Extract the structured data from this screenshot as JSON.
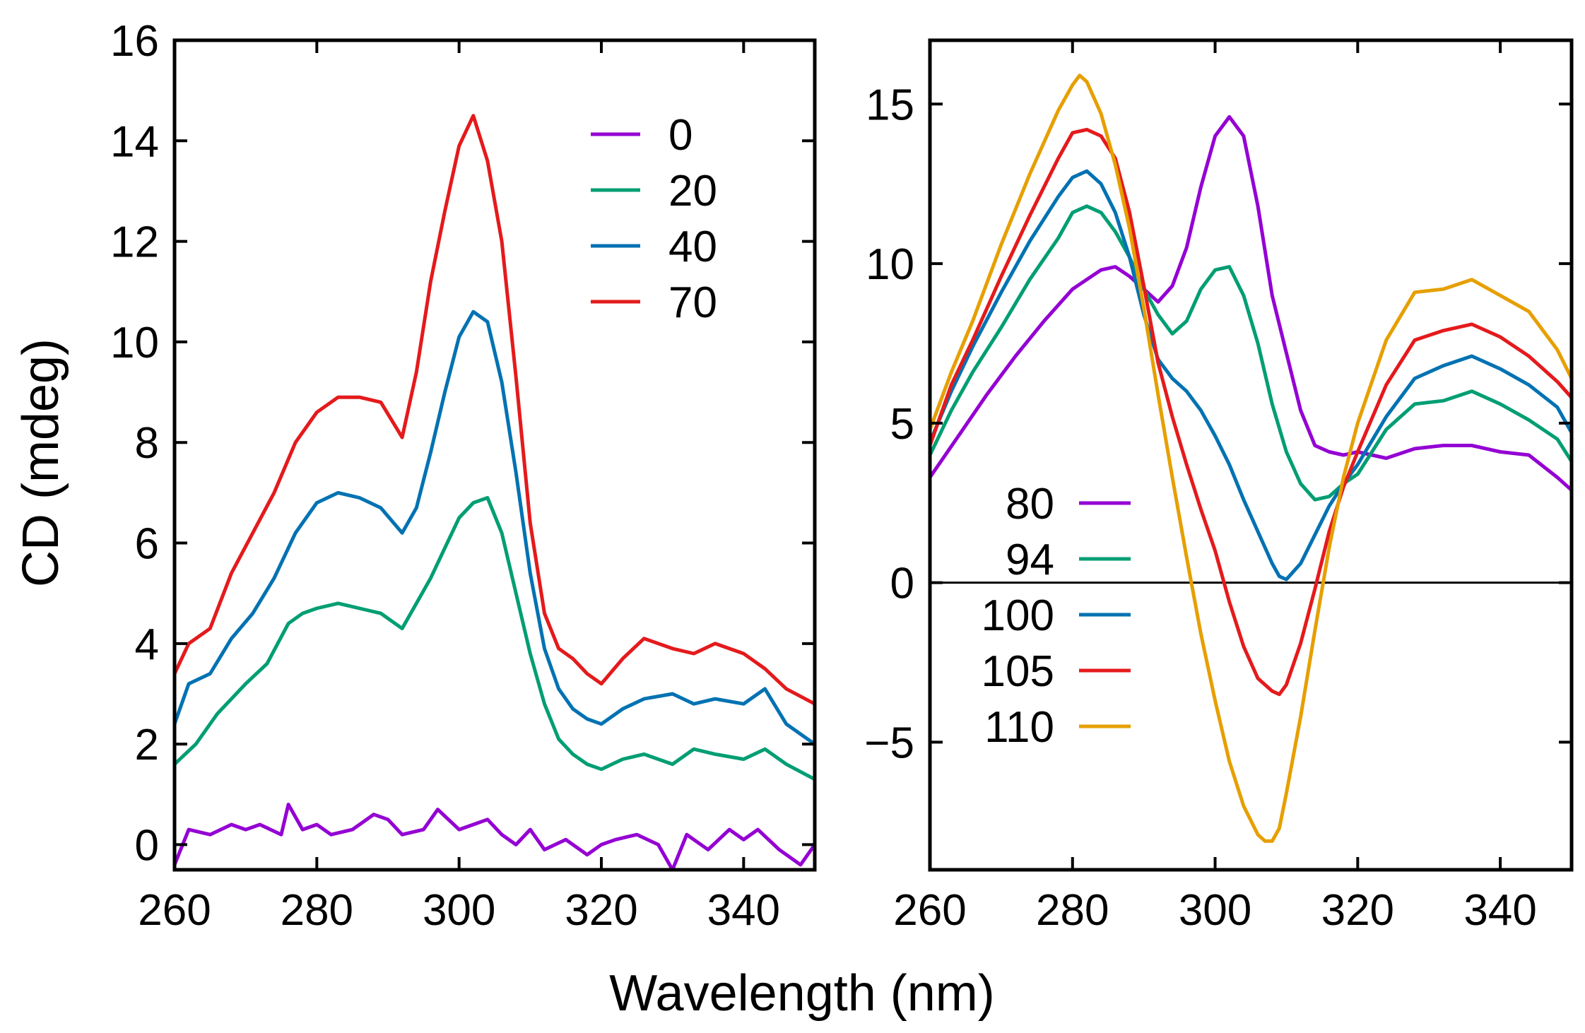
{
  "chart_data": [
    {
      "type": "line",
      "title": "",
      "xlabel": "Wavelength (nm)",
      "ylabel": "CD (mdeg)",
      "xlim": [
        260,
        350
      ],
      "ylim": [
        -0.5,
        16
      ],
      "xticks": [
        "260",
        "280",
        "300",
        "320",
        "340"
      ],
      "xtick_values": [
        260,
        280,
        300,
        320,
        340
      ],
      "yticks": [
        "0",
        "2",
        "4",
        "6",
        "8",
        "10",
        "12",
        "14",
        "16"
      ],
      "ytick_values": [
        0,
        2,
        4,
        6,
        8,
        10,
        12,
        14,
        16
      ],
      "legend_position": "top-right",
      "zero_line": false,
      "series": [
        {
          "name": "0",
          "color": "#9400d3",
          "x": [
            260,
            262,
            265,
            268,
            270,
            272,
            275,
            276,
            278,
            280,
            282,
            285,
            288,
            290,
            292,
            295,
            297,
            300,
            302,
            304,
            306,
            308,
            310,
            312,
            315,
            318,
            320,
            322,
            325,
            328,
            330,
            332,
            335,
            338,
            340,
            342,
            345,
            348,
            350
          ],
          "y": [
            -0.4,
            0.3,
            0.2,
            0.4,
            0.3,
            0.4,
            0.2,
            0.8,
            0.3,
            0.4,
            0.2,
            0.3,
            0.6,
            0.5,
            0.2,
            0.3,
            0.7,
            0.3,
            0.4,
            0.5,
            0.2,
            0.0,
            0.3,
            -0.1,
            0.1,
            -0.2,
            0.0,
            0.1,
            0.2,
            0.0,
            -0.5,
            0.2,
            -0.1,
            0.3,
            0.1,
            0.3,
            -0.1,
            -0.4,
            0.0
          ]
        },
        {
          "name": "20",
          "color": "#009e73",
          "x": [
            260,
            263,
            266,
            270,
            273,
            276,
            278,
            280,
            283,
            286,
            289,
            292,
            294,
            296,
            298,
            300,
            302,
            304,
            306,
            308,
            310,
            312,
            314,
            316,
            318,
            320,
            323,
            326,
            330,
            333,
            336,
            340,
            343,
            346,
            350
          ],
          "y": [
            1.6,
            2.0,
            2.6,
            3.2,
            3.6,
            4.4,
            4.6,
            4.7,
            4.8,
            4.7,
            4.6,
            4.3,
            4.8,
            5.3,
            5.9,
            6.5,
            6.8,
            6.9,
            6.2,
            5.0,
            3.8,
            2.8,
            2.1,
            1.8,
            1.6,
            1.5,
            1.7,
            1.8,
            1.6,
            1.9,
            1.8,
            1.7,
            1.9,
            1.6,
            1.3
          ]
        },
        {
          "name": "40",
          "color": "#0072b2",
          "x": [
            260,
            262,
            265,
            268,
            271,
            274,
            277,
            280,
            283,
            286,
            289,
            292,
            294,
            296,
            298,
            300,
            302,
            304,
            306,
            308,
            310,
            312,
            314,
            316,
            318,
            320,
            323,
            326,
            330,
            333,
            336,
            340,
            343,
            346,
            350
          ],
          "y": [
            2.4,
            3.2,
            3.4,
            4.1,
            4.6,
            5.3,
            6.2,
            6.8,
            7.0,
            6.9,
            6.7,
            6.2,
            6.7,
            7.8,
            9.0,
            10.1,
            10.6,
            10.4,
            9.2,
            7.4,
            5.4,
            3.9,
            3.1,
            2.7,
            2.5,
            2.4,
            2.7,
            2.9,
            3.0,
            2.8,
            2.9,
            2.8,
            3.1,
            2.4,
            2.0
          ]
        },
        {
          "name": "70",
          "color": "#e41a1c",
          "x": [
            260,
            262,
            265,
            268,
            271,
            274,
            277,
            280,
            283,
            286,
            289,
            292,
            294,
            296,
            298,
            300,
            302,
            304,
            306,
            308,
            310,
            312,
            314,
            316,
            318,
            320,
            323,
            326,
            330,
            333,
            336,
            340,
            343,
            346,
            350
          ],
          "y": [
            3.4,
            4.0,
            4.3,
            5.4,
            6.2,
            7.0,
            8.0,
            8.6,
            8.9,
            8.9,
            8.8,
            8.1,
            9.4,
            11.2,
            12.6,
            13.9,
            14.5,
            13.6,
            12.0,
            9.3,
            6.4,
            4.6,
            3.9,
            3.7,
            3.4,
            3.2,
            3.7,
            4.1,
            3.9,
            3.8,
            4.0,
            3.8,
            3.5,
            3.1,
            2.8
          ]
        }
      ]
    },
    {
      "type": "line",
      "title": "",
      "xlabel": "Wavelength (nm)",
      "ylabel": "",
      "xlim": [
        260,
        350
      ],
      "ylim": [
        -9,
        17
      ],
      "xticks": [
        "260",
        "280",
        "300",
        "320",
        "340"
      ],
      "xtick_values": [
        260,
        280,
        300,
        320,
        340
      ],
      "yticks": [
        "−5",
        "0",
        "5",
        "10",
        "15"
      ],
      "ytick_values": [
        -5,
        0,
        5,
        10,
        15
      ],
      "legend_position": "bottom-left",
      "zero_line": true,
      "series": [
        {
          "name": "80",
          "color": "#9400d3",
          "x": [
            260,
            264,
            268,
            272,
            276,
            280,
            284,
            286,
            288,
            290,
            292,
            294,
            296,
            298,
            300,
            302,
            304,
            306,
            308,
            310,
            312,
            314,
            316,
            318,
            320,
            324,
            328,
            332,
            336,
            340,
            344,
            348,
            350
          ],
          "y": [
            3.3,
            4.6,
            5.9,
            7.1,
            8.2,
            9.2,
            9.8,
            9.9,
            9.6,
            9.2,
            8.8,
            9.3,
            10.5,
            12.4,
            14.0,
            14.6,
            14.0,
            11.8,
            9.0,
            7.2,
            5.4,
            4.3,
            4.1,
            4.0,
            4.1,
            3.9,
            4.2,
            4.3,
            4.3,
            4.1,
            4.0,
            3.3,
            2.9
          ]
        },
        {
          "name": "94",
          "color": "#009e73",
          "x": [
            260,
            263,
            266,
            270,
            274,
            278,
            280,
            282,
            284,
            286,
            288,
            290,
            292,
            294,
            296,
            298,
            300,
            302,
            304,
            306,
            308,
            310,
            312,
            314,
            316,
            318,
            320,
            324,
            328,
            332,
            336,
            340,
            344,
            348,
            350
          ],
          "y": [
            4.0,
            5.4,
            6.6,
            8.0,
            9.5,
            10.8,
            11.6,
            11.8,
            11.6,
            11.0,
            10.2,
            9.2,
            8.4,
            7.8,
            8.2,
            9.2,
            9.8,
            9.9,
            9.0,
            7.5,
            5.6,
            4.1,
            3.1,
            2.6,
            2.7,
            3.1,
            3.4,
            4.8,
            5.6,
            5.7,
            6.0,
            5.6,
            5.1,
            4.5,
            3.8
          ]
        },
        {
          "name": "100",
          "color": "#0072b2",
          "x": [
            260,
            263,
            266,
            270,
            274,
            278,
            280,
            282,
            284,
            286,
            288,
            290,
            292,
            294,
            296,
            298,
            300,
            302,
            304,
            306,
            308,
            309,
            310,
            312,
            314,
            316,
            318,
            320,
            324,
            328,
            332,
            336,
            340,
            344,
            348,
            350
          ],
          "y": [
            4.4,
            6.0,
            7.4,
            9.1,
            10.7,
            12.1,
            12.7,
            12.9,
            12.5,
            11.6,
            10.2,
            8.4,
            7.0,
            6.4,
            6.0,
            5.4,
            4.6,
            3.7,
            2.6,
            1.6,
            0.6,
            0.2,
            0.1,
            0.6,
            1.5,
            2.4,
            3.1,
            3.7,
            5.2,
            6.4,
            6.8,
            7.1,
            6.7,
            6.2,
            5.5,
            4.7
          ]
        },
        {
          "name": "105",
          "color": "#e41a1c",
          "x": [
            260,
            263,
            266,
            270,
            274,
            278,
            280,
            282,
            284,
            286,
            288,
            290,
            292,
            294,
            296,
            298,
            300,
            302,
            304,
            306,
            308,
            309,
            310,
            312,
            314,
            316,
            318,
            320,
            324,
            328,
            332,
            336,
            340,
            344,
            348,
            350
          ],
          "y": [
            4.3,
            6.2,
            7.6,
            9.6,
            11.5,
            13.3,
            14.1,
            14.2,
            14.0,
            13.3,
            11.6,
            9.3,
            6.9,
            5.2,
            3.7,
            2.3,
            1.0,
            -0.6,
            -2.0,
            -3.0,
            -3.4,
            -3.5,
            -3.2,
            -1.9,
            -0.2,
            1.6,
            3.0,
            4.1,
            6.2,
            7.6,
            7.9,
            8.1,
            7.7,
            7.1,
            6.3,
            5.8
          ]
        },
        {
          "name": "110",
          "color": "#e69f00",
          "x": [
            260,
            263,
            266,
            270,
            274,
            278,
            280,
            281,
            282,
            284,
            286,
            288,
            290,
            292,
            294,
            296,
            298,
            300,
            302,
            304,
            306,
            307,
            308,
            309,
            310,
            312,
            314,
            316,
            318,
            320,
            324,
            328,
            332,
            336,
            340,
            344,
            348,
            350
          ],
          "y": [
            4.8,
            6.6,
            8.2,
            10.6,
            12.8,
            14.8,
            15.6,
            15.9,
            15.7,
            14.7,
            13.1,
            11.1,
            8.6,
            5.9,
            3.3,
            0.8,
            -1.6,
            -3.7,
            -5.6,
            -7.0,
            -7.9,
            -8.1,
            -8.1,
            -7.7,
            -6.6,
            -4.2,
            -1.5,
            1.1,
            3.3,
            5.0,
            7.6,
            9.1,
            9.2,
            9.5,
            9.0,
            8.5,
            7.3,
            6.4
          ]
        }
      ]
    }
  ]
}
